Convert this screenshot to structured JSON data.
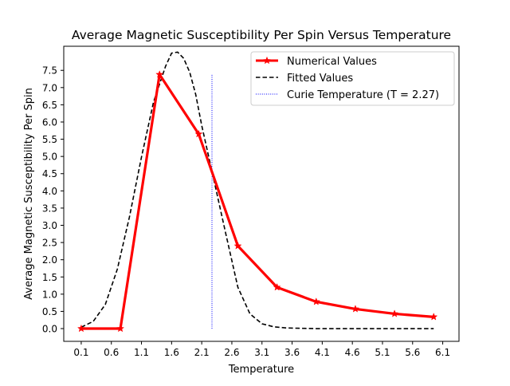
{
  "chart_data": {
    "type": "line",
    "title": "Average Magnetic Susceptibility Per Spin Versus Temperature",
    "xlabel": "Temperature",
    "ylabel": "Average Magnetic Susceptibility Per Spin",
    "xlim": [
      -0.19,
      6.37
    ],
    "ylim": [
      -0.37,
      8.2
    ],
    "x_ticks": [
      "0.1",
      "0.6",
      "1.1",
      "1.6",
      "2.1",
      "2.6",
      "3.1",
      "3.6",
      "4.1",
      "4.6",
      "5.1",
      "5.6",
      "6.1"
    ],
    "y_ticks": [
      "0.0",
      "0.5",
      "1.0",
      "1.5",
      "2.0",
      "2.5",
      "3.0",
      "3.5",
      "4.0",
      "4.5",
      "5.0",
      "5.5",
      "6.0",
      "6.5",
      "7.0",
      "7.5"
    ],
    "grid": false,
    "legend_position": "top-right",
    "series": [
      {
        "name": "Numerical Values",
        "style": "solid-star-markers",
        "color": "#ff0000",
        "x": [
          0.1,
          0.75,
          1.4,
          2.05,
          2.7,
          3.35,
          4.0,
          4.65,
          5.3,
          5.95
        ],
        "y": [
          0.0,
          0.0,
          7.38,
          5.65,
          2.4,
          1.2,
          0.78,
          0.57,
          0.43,
          0.34
        ]
      },
      {
        "name": "Fitted Values",
        "style": "dashed",
        "color": "#000000",
        "x": [
          0.1,
          0.3,
          0.5,
          0.7,
          0.9,
          1.1,
          1.3,
          1.5,
          1.6,
          1.7,
          1.8,
          1.9,
          2.0,
          2.1,
          2.3,
          2.5,
          2.7,
          2.9,
          3.1,
          3.3,
          3.5,
          3.7,
          4.0,
          5.0,
          5.95
        ],
        "y": [
          0.04,
          0.21,
          0.7,
          1.73,
          3.24,
          4.98,
          6.58,
          7.62,
          8.0,
          8.03,
          7.85,
          7.45,
          6.8,
          5.9,
          4.33,
          2.75,
          1.2,
          0.43,
          0.14,
          0.05,
          0.02,
          0.01,
          0.0,
          0.0,
          0.0
        ]
      },
      {
        "name": "Curie Temperature (T = 2.27)",
        "style": "dotted-vertical",
        "color": "#0000ff",
        "x": [
          2.27,
          2.27
        ],
        "y": [
          0.0,
          7.38
        ]
      }
    ]
  }
}
